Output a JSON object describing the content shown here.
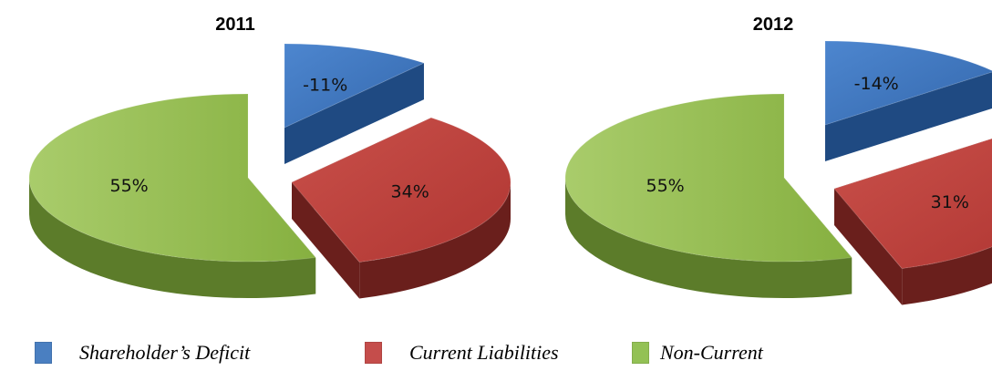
{
  "chart_data": [
    {
      "type": "pie",
      "title": "2011",
      "series": [
        {
          "name": "Shareholder’s Deficit",
          "value": -11,
          "label": "-11%",
          "color": "#3f78c2"
        },
        {
          "name": "Current Liabilities",
          "value": 34,
          "label": "34%",
          "color": "#c0413c"
        },
        {
          "name": "Non-Current",
          "value": 55,
          "label": "55%",
          "color": "#8db548"
        }
      ]
    },
    {
      "type": "pie",
      "title": "2012",
      "series": [
        {
          "name": "Shareholder’s Deficit",
          "value": -14,
          "label": "-14%",
          "color": "#3f78c2"
        },
        {
          "name": "Current Liabilities",
          "value": 31,
          "label": "31%",
          "color": "#c0413c"
        },
        {
          "name": "Non-Current",
          "value": 55,
          "label": "55%",
          "color": "#8db548"
        }
      ]
    }
  ],
  "legend": [
    {
      "label": "Shareholder’s Deficit",
      "color": "#4a7fc1"
    },
    {
      "label": "Current Liabilities",
      "color": "#c54d4b"
    },
    {
      "label": "Non-Current",
      "color": "#93c155"
    }
  ],
  "legend_placement": "bottom"
}
